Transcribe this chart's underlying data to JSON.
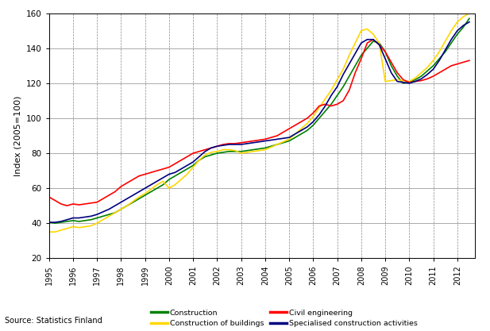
{
  "title": "",
  "xlabel": "",
  "ylabel": "Index (2005=100)",
  "source_text": "Source: Statistics Finland",
  "xlim": [
    1995,
    2012.75
  ],
  "ylim": [
    20,
    160
  ],
  "yticks": [
    20,
    40,
    60,
    80,
    100,
    120,
    140,
    160
  ],
  "xticks": [
    1995,
    1996,
    1997,
    1998,
    1999,
    2000,
    2001,
    2002,
    2003,
    2004,
    2005,
    2006,
    2007,
    2008,
    2009,
    2010,
    2011,
    2012
  ],
  "series": {
    "Construction": {
      "color": "#008000",
      "data_x": [
        1995.0,
        1995.25,
        1995.5,
        1995.75,
        1996.0,
        1996.25,
        1996.5,
        1996.75,
        1997.0,
        1997.25,
        1997.5,
        1997.75,
        1998.0,
        1998.25,
        1998.5,
        1998.75,
        1999.0,
        1999.25,
        1999.5,
        1999.75,
        2000.0,
        2000.25,
        2000.5,
        2000.75,
        2001.0,
        2001.25,
        2001.5,
        2001.75,
        2002.0,
        2002.25,
        2002.5,
        2002.75,
        2003.0,
        2003.25,
        2003.5,
        2003.75,
        2004.0,
        2004.25,
        2004.5,
        2004.75,
        2005.0,
        2005.25,
        2005.5,
        2005.75,
        2006.0,
        2006.25,
        2006.5,
        2006.75,
        2007.0,
        2007.25,
        2007.5,
        2007.75,
        2008.0,
        2008.25,
        2008.5,
        2008.75,
        2009.0,
        2009.25,
        2009.5,
        2009.75,
        2010.0,
        2010.25,
        2010.5,
        2010.75,
        2011.0,
        2011.25,
        2011.5,
        2011.75,
        2012.0,
        2012.25,
        2012.5
      ],
      "data_y": [
        40.5,
        40.0,
        40.5,
        41.0,
        41.5,
        41.0,
        41.5,
        42.0,
        43.0,
        44.0,
        45.0,
        46.0,
        48.0,
        50.0,
        52.0,
        54.0,
        56.0,
        58.0,
        60.0,
        62.0,
        65.0,
        67.0,
        69.0,
        71.0,
        73.0,
        76.0,
        78.0,
        79.0,
        80.0,
        80.5,
        81.0,
        81.0,
        81.0,
        81.5,
        82.0,
        82.5,
        83.0,
        84.0,
        85.0,
        86.0,
        87.0,
        89.0,
        91.0,
        93.0,
        96.0,
        100.0,
        104.0,
        108.0,
        113.0,
        118.0,
        124.0,
        130.0,
        136.0,
        140.0,
        144.0,
        143.0,
        138.0,
        130.0,
        124.0,
        120.0,
        120.5,
        122.0,
        124.0,
        127.0,
        130.0,
        134.0,
        138.0,
        143.0,
        148.0,
        152.0,
        157.0
      ]
    },
    "Construction of buildings": {
      "color": "#FFD700",
      "data_x": [
        1995.0,
        1995.25,
        1995.5,
        1995.75,
        1996.0,
        1996.25,
        1996.5,
        1996.75,
        1997.0,
        1997.25,
        1997.5,
        1997.75,
        1998.0,
        1998.25,
        1998.5,
        1998.75,
        1999.0,
        1999.25,
        1999.5,
        1999.75,
        2000.0,
        2000.25,
        2000.5,
        2000.75,
        2001.0,
        2001.25,
        2001.5,
        2001.75,
        2002.0,
        2002.25,
        2002.5,
        2002.75,
        2003.0,
        2003.25,
        2003.5,
        2003.75,
        2004.0,
        2004.25,
        2004.5,
        2004.75,
        2005.0,
        2005.25,
        2005.5,
        2005.75,
        2006.0,
        2006.25,
        2006.5,
        2006.75,
        2007.0,
        2007.25,
        2007.5,
        2007.75,
        2008.0,
        2008.25,
        2008.5,
        2008.75,
        2009.0,
        2009.25,
        2009.5,
        2009.75,
        2010.0,
        2010.25,
        2010.5,
        2010.75,
        2011.0,
        2011.25,
        2011.5,
        2011.75,
        2012.0,
        2012.25,
        2012.5
      ],
      "data_y": [
        35.0,
        35.0,
        36.0,
        37.0,
        38.0,
        37.5,
        38.0,
        38.5,
        40.0,
        42.0,
        44.0,
        46.0,
        48.0,
        50.0,
        52.5,
        55.0,
        57.0,
        59.5,
        62.0,
        64.0,
        60.0,
        62.0,
        65.0,
        68.0,
        72.0,
        76.0,
        79.0,
        80.5,
        81.0,
        82.0,
        82.0,
        81.5,
        80.0,
        80.5,
        81.0,
        81.5,
        82.0,
        83.5,
        85.0,
        86.5,
        88.0,
        91.0,
        94.0,
        97.0,
        101.0,
        106.0,
        111.0,
        116.0,
        122.0,
        128.0,
        136.0,
        143.0,
        150.0,
        151.0,
        148.0,
        143.0,
        121.0,
        121.5,
        122.0,
        121.5,
        121.0,
        123.0,
        126.0,
        129.0,
        133.0,
        138.0,
        144.0,
        150.0,
        155.0,
        158.0,
        160.0
      ]
    },
    "Civil engineering": {
      "color": "#FF0000",
      "data_x": [
        1995.0,
        1995.25,
        1995.5,
        1995.75,
        1996.0,
        1996.25,
        1996.5,
        1996.75,
        1997.0,
        1997.25,
        1997.5,
        1997.75,
        1998.0,
        1998.25,
        1998.5,
        1998.75,
        1999.0,
        1999.25,
        1999.5,
        1999.75,
        2000.0,
        2000.25,
        2000.5,
        2000.75,
        2001.0,
        2001.25,
        2001.5,
        2001.75,
        2002.0,
        2002.25,
        2002.5,
        2002.75,
        2003.0,
        2003.25,
        2003.5,
        2003.75,
        2004.0,
        2004.25,
        2004.5,
        2004.75,
        2005.0,
        2005.25,
        2005.5,
        2005.75,
        2006.0,
        2006.25,
        2006.5,
        2006.75,
        2007.0,
        2007.25,
        2007.5,
        2007.75,
        2008.0,
        2008.25,
        2008.5,
        2008.75,
        2009.0,
        2009.25,
        2009.5,
        2009.75,
        2010.0,
        2010.25,
        2010.5,
        2010.75,
        2011.0,
        2011.25,
        2011.5,
        2011.75,
        2012.0,
        2012.25,
        2012.5
      ],
      "data_y": [
        55.0,
        53.0,
        51.0,
        50.0,
        51.0,
        50.5,
        51.0,
        51.5,
        52.0,
        54.0,
        56.0,
        58.0,
        61.0,
        63.0,
        65.0,
        67.0,
        68.0,
        69.0,
        70.0,
        71.0,
        72.0,
        74.0,
        76.0,
        78.0,
        80.0,
        81.0,
        82.0,
        83.0,
        84.0,
        85.0,
        85.5,
        85.5,
        86.0,
        86.5,
        87.0,
        87.5,
        88.0,
        89.0,
        90.0,
        92.0,
        94.0,
        96.0,
        98.0,
        100.0,
        103.0,
        107.0,
        108.0,
        107.0,
        108.0,
        110.0,
        116.0,
        126.0,
        134.0,
        143.0,
        145.0,
        142.0,
        138.0,
        132.0,
        126.0,
        122.0,
        120.5,
        121.0,
        121.5,
        122.5,
        124.0,
        126.0,
        128.0,
        130.0,
        131.0,
        132.0,
        133.0
      ]
    },
    "Specialised construction activities": {
      "color": "#000080",
      "data_x": [
        1995.0,
        1995.25,
        1995.5,
        1995.75,
        1996.0,
        1996.25,
        1996.5,
        1996.75,
        1997.0,
        1997.25,
        1997.5,
        1997.75,
        1998.0,
        1998.25,
        1998.5,
        1998.75,
        1999.0,
        1999.25,
        1999.5,
        1999.75,
        2000.0,
        2000.25,
        2000.5,
        2000.75,
        2001.0,
        2001.25,
        2001.5,
        2001.75,
        2002.0,
        2002.25,
        2002.5,
        2002.75,
        2003.0,
        2003.25,
        2003.5,
        2003.75,
        2004.0,
        2004.25,
        2004.5,
        2004.75,
        2005.0,
        2005.25,
        2005.5,
        2005.75,
        2006.0,
        2006.25,
        2006.5,
        2006.75,
        2007.0,
        2007.25,
        2007.5,
        2007.75,
        2008.0,
        2008.25,
        2008.5,
        2008.75,
        2009.0,
        2009.25,
        2009.5,
        2009.75,
        2010.0,
        2010.25,
        2010.5,
        2010.75,
        2011.0,
        2011.25,
        2011.5,
        2011.75,
        2012.0,
        2012.25,
        2012.5
      ],
      "data_y": [
        40.5,
        40.5,
        41.0,
        42.0,
        43.0,
        43.0,
        43.5,
        44.0,
        45.0,
        46.5,
        48.0,
        50.0,
        52.0,
        54.0,
        56.0,
        58.0,
        60.0,
        62.0,
        64.0,
        66.0,
        68.0,
        69.0,
        71.0,
        73.0,
        75.0,
        78.0,
        81.0,
        83.0,
        84.0,
        84.5,
        85.0,
        85.0,
        85.0,
        85.5,
        86.0,
        86.5,
        87.0,
        87.5,
        88.0,
        88.5,
        89.0,
        91.0,
        93.0,
        95.0,
        98.0,
        102.0,
        107.0,
        113.0,
        118.0,
        125.0,
        131.0,
        137.0,
        143.0,
        145.0,
        145.0,
        142.0,
        134.0,
        126.0,
        121.0,
        120.5,
        120.0,
        121.0,
        122.5,
        125.0,
        128.0,
        133.0,
        139.0,
        145.0,
        150.0,
        153.0,
        155.0
      ]
    }
  },
  "legend_order": [
    "Construction",
    "Construction of buildings",
    "Civil engineering",
    "Specialised construction activities"
  ],
  "background_color": "#ffffff",
  "grid_color": "#888888",
  "linewidth": 1.2
}
